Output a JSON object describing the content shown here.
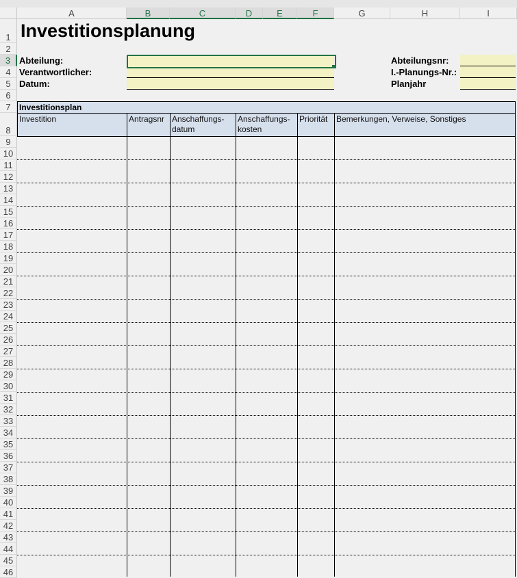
{
  "columns": [
    "A",
    "B",
    "C",
    "D",
    "E",
    "F",
    "G",
    "H",
    "I"
  ],
  "rows": [
    "1",
    "2",
    "3",
    "4",
    "5",
    "6",
    "7",
    "8",
    "9",
    "10",
    "11",
    "12",
    "13",
    "14",
    "15",
    "16",
    "17",
    "18",
    "19",
    "20",
    "21",
    "22",
    "23",
    "24",
    "25",
    "26",
    "27",
    "28",
    "29",
    "30",
    "31",
    "32",
    "33",
    "34",
    "35",
    "36",
    "37",
    "38",
    "39",
    "40",
    "41",
    "42",
    "43",
    "44",
    "45",
    "46"
  ],
  "title": "Investitionsplanung",
  "fields_left": [
    {
      "label": "Abteilung:",
      "value": ""
    },
    {
      "label": "Verantwortlicher:",
      "value": ""
    },
    {
      "label": "Datum:",
      "value": ""
    }
  ],
  "fields_right": [
    {
      "label": "Abteilungsnr:",
      "value": ""
    },
    {
      "label": "I.-Planungs-Nr.:",
      "value": ""
    },
    {
      "label": "Planjahr",
      "value": ""
    }
  ],
  "table": {
    "title": "Investitionsplan",
    "headers": [
      "Investition",
      "Antragsnr",
      "Anschaffungs-\ndatum",
      "Anschaffungs-\nkosten",
      "Priorität",
      "Bemerkungen, Verweise, Sonstiges"
    ]
  },
  "colors": {
    "input_fill": "#f2f2c4",
    "header_fill": "#d6dfec",
    "selection": "#217346"
  }
}
